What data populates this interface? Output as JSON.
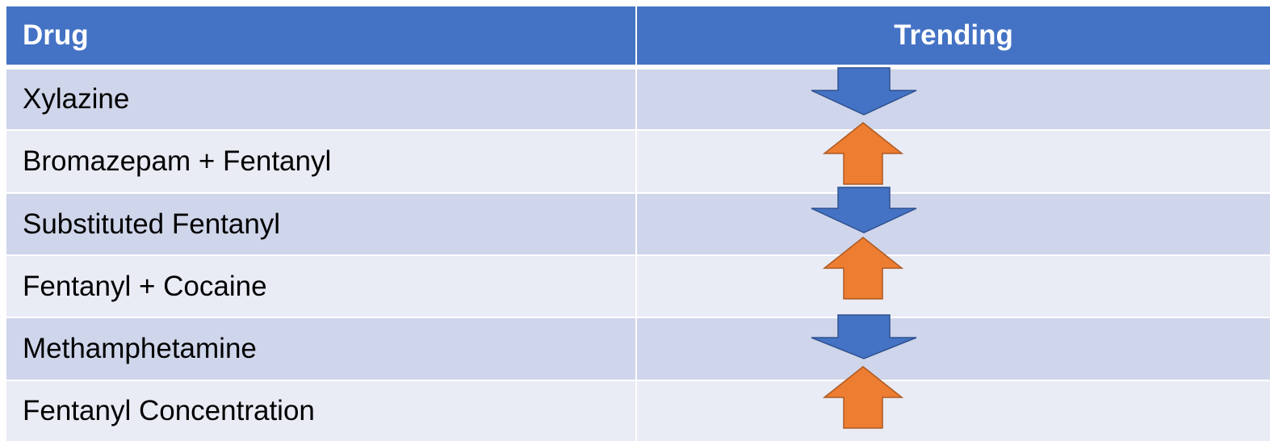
{
  "header": {
    "drug": "Drug",
    "trending": "Trending"
  },
  "rows": [
    "Xylazine",
    "Bromazepam + Fentanyl",
    "Substituted Fentanyl",
    "Fentanyl + Cocaine",
    "Methamphetamine",
    "Fentanyl Concentration"
  ]
}
